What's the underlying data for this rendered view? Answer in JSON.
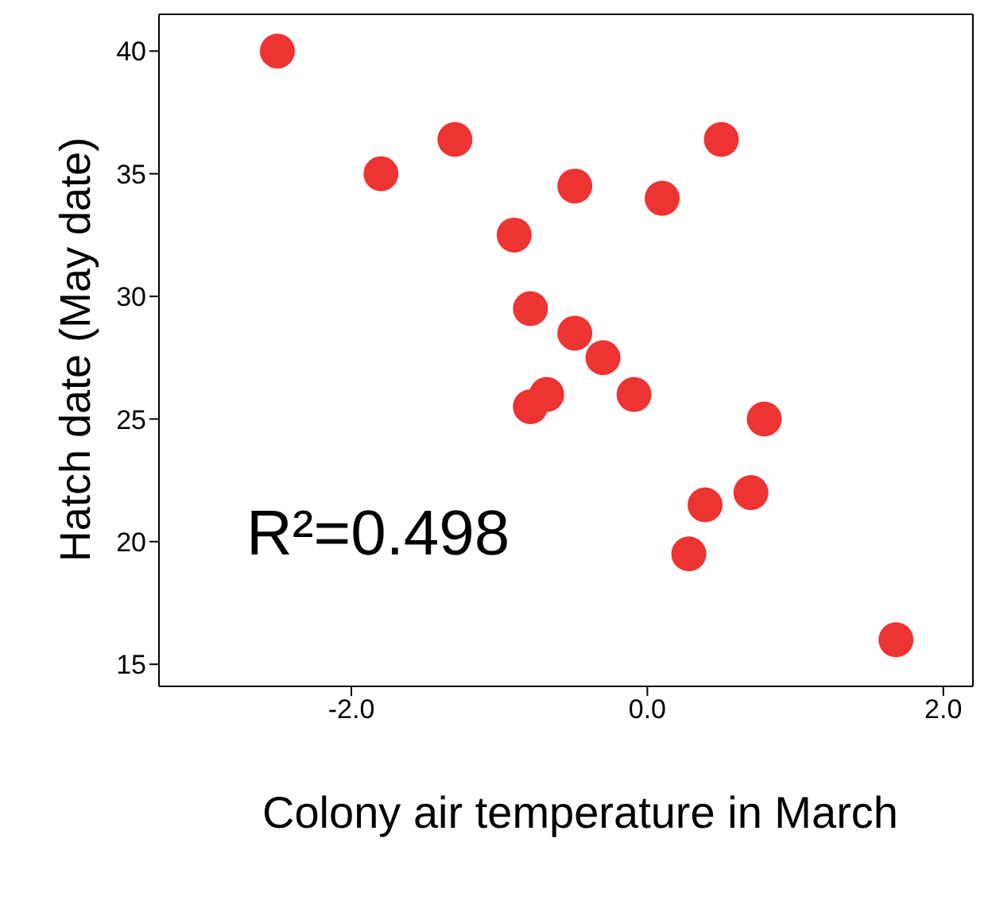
{
  "chart_data": {
    "type": "scatter",
    "xlabel": "Colony air temperature in March",
    "ylabel": "Hatch date (May date)",
    "annotations": [
      "R²=0.498"
    ],
    "x": [
      -2.5,
      -1.8,
      -1.3,
      -0.9,
      -0.49,
      0.1,
      0.5,
      -0.79,
      -0.49,
      -0.3,
      -0.09,
      -0.68,
      -0.79,
      0.79,
      0.7,
      0.39,
      0.28,
      1.68
    ],
    "values": [
      40,
      35,
      36.4,
      32.5,
      34.5,
      34,
      36.4,
      29.5,
      28.5,
      27.5,
      26,
      26,
      25.5,
      25,
      22,
      21.5,
      19.5,
      16
    ],
    "color": "#ee3333",
    "marker": "circle",
    "xlim": [
      -3.3,
      2.2
    ],
    "xticks": [
      {
        "value": -2,
        "label": "-2.0"
      },
      {
        "value": 0,
        "label": "0.0"
      },
      {
        "value": 2,
        "label": "2.0"
      }
    ],
    "ylim": [
      14.1,
      41.5
    ],
    "yticks": [
      15,
      20,
      25,
      30,
      35,
      40
    ]
  }
}
